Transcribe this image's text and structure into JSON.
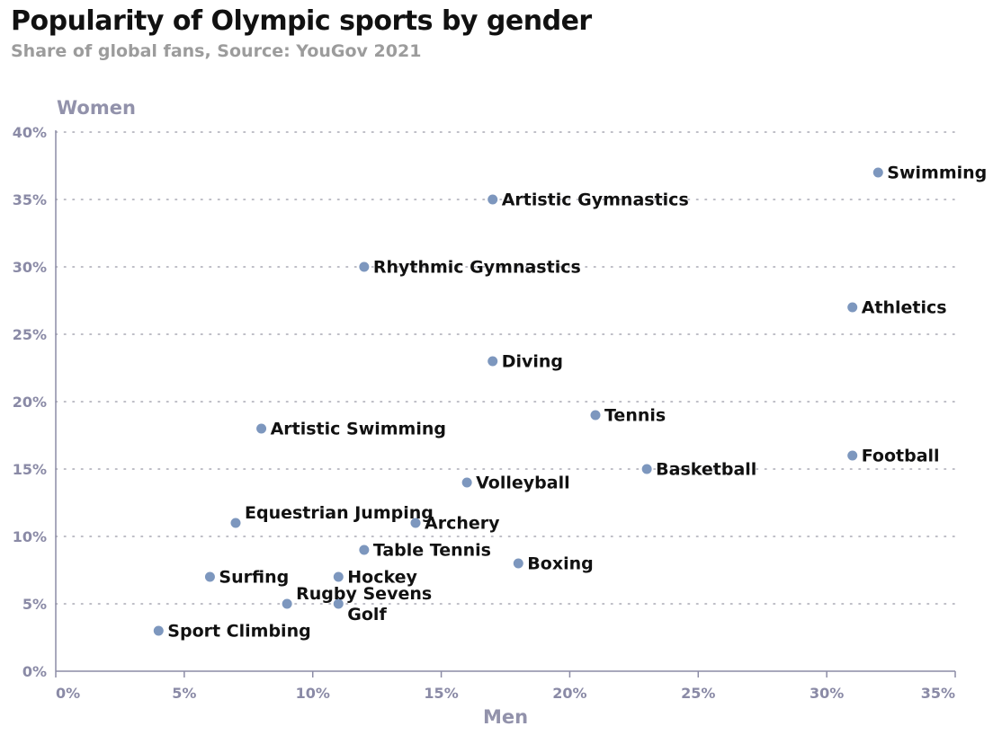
{
  "header": {
    "title": "Popularity of Olympic sports by gender",
    "subtitle": "Share of global fans, Source: YouGov 2021"
  },
  "colors": {
    "point": "#7d97be",
    "axis": "#8c8ca6",
    "text": "#111111",
    "muted": "#9c9c9c"
  },
  "chart_data": {
    "type": "scatter",
    "title": "Popularity of Olympic sports by gender",
    "subtitle": "Share of global fans, Source: YouGov 2021",
    "xlabel": "Men",
    "ylabel": "Women",
    "xlim": [
      0,
      35
    ],
    "ylim": [
      0,
      40
    ],
    "x_ticks": [
      "0%",
      "5%",
      "10%",
      "15%",
      "20%",
      "25%",
      "30%",
      "35%"
    ],
    "y_ticks": [
      "0%",
      "5%",
      "10%",
      "15%",
      "20%",
      "25%",
      "30%",
      "35%",
      "40%"
    ],
    "grid": "horizontal-dotted",
    "points": [
      {
        "label": "Swimming",
        "x": 32,
        "y": 37
      },
      {
        "label": "Artistic Gymnastics",
        "x": 17,
        "y": 35
      },
      {
        "label": "Rhythmic Gymnastics",
        "x": 12,
        "y": 30
      },
      {
        "label": "Athletics",
        "x": 31,
        "y": 27
      },
      {
        "label": "Diving",
        "x": 17,
        "y": 23
      },
      {
        "label": "Tennis",
        "x": 21,
        "y": 19
      },
      {
        "label": "Artistic Swimming",
        "x": 8,
        "y": 18
      },
      {
        "label": "Football",
        "x": 31,
        "y": 16
      },
      {
        "label": "Basketball",
        "x": 23,
        "y": 15
      },
      {
        "label": "Volleyball",
        "x": 16,
        "y": 14
      },
      {
        "label": "Equestrian Jumping",
        "x": 7,
        "y": 11
      },
      {
        "label": "Archery",
        "x": 14,
        "y": 11
      },
      {
        "label": "Table Tennis",
        "x": 12,
        "y": 9
      },
      {
        "label": "Boxing",
        "x": 18,
        "y": 8
      },
      {
        "label": "Surfing",
        "x": 6,
        "y": 7
      },
      {
        "label": "Hockey",
        "x": 11,
        "y": 7
      },
      {
        "label": "Rugby Sevens",
        "x": 9,
        "y": 5
      },
      {
        "label": "Golf",
        "x": 11,
        "y": 5
      },
      {
        "label": "Sport Climbing",
        "x": 4,
        "y": 3
      }
    ]
  }
}
